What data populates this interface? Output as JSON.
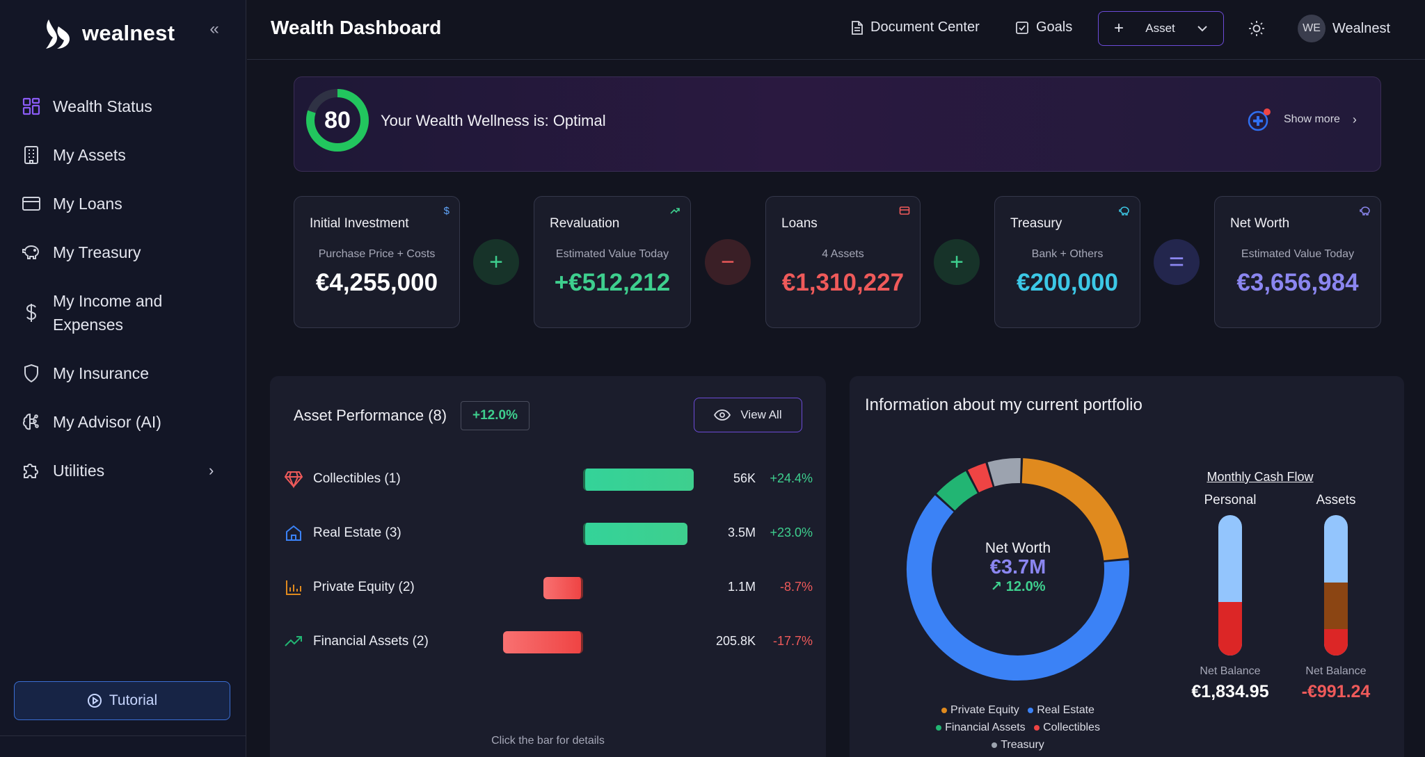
{
  "app": {
    "logo_text": "wealnest",
    "colors": {
      "accent": "#6c4bd8",
      "positive": "#3ecf8e",
      "negative": "#ef5a5a",
      "cyan": "#3cc8e6",
      "violet": "#8b86f0"
    }
  },
  "sidebar": {
    "items": [
      {
        "label": "Wealth Status",
        "icon": "grid-icon"
      },
      {
        "label": "My Assets",
        "icon": "building-icon"
      },
      {
        "label": "My Loans",
        "icon": "credit-card-icon"
      },
      {
        "label": "My Treasury",
        "icon": "piggy-bank-icon"
      },
      {
        "label": "My Income and Expenses",
        "icon": "dollar-icon"
      },
      {
        "label": "My Insurance",
        "icon": "shield-icon"
      },
      {
        "label": "My Advisor (AI)",
        "icon": "brain-icon"
      },
      {
        "label": "Utilities",
        "icon": "puzzle-icon"
      }
    ],
    "tutorial_label": "Tutorial"
  },
  "header": {
    "title": "Wealth Dashboard",
    "document_center": "Document Center",
    "goals": "Goals",
    "asset_button": "Asset",
    "user_initials": "WE",
    "user_name": "Wealnest"
  },
  "wellness": {
    "score": "80",
    "score_value": 80,
    "text": "Your Wealth Wellness is: Optimal",
    "show_more": "Show more"
  },
  "summary": [
    {
      "title": "Initial Investment",
      "subtitle": "Purchase Price + Costs",
      "value": "€4,255,000",
      "color": "#ffffff"
    },
    {
      "title": "Revaluation",
      "subtitle": "Estimated Value Today",
      "value": "+€512,212",
      "color": "#3ecf8e"
    },
    {
      "title": "Loans",
      "subtitle": "4 Assets",
      "value": "€1,310,227",
      "color": "#ef5a5a"
    },
    {
      "title": "Treasury",
      "subtitle": "Bank + Others",
      "value": "€200,000",
      "color": "#3cc8e6"
    },
    {
      "title": "Net Worth",
      "subtitle": "Estimated Value Today",
      "value": "€3,656,984",
      "color": "#8b86f0"
    }
  ],
  "asset_performance": {
    "title": "Asset Performance (8)",
    "badge": "+12.0%",
    "view_all": "View All",
    "footer": "Click the bar for details",
    "rows": [
      {
        "label": "Collectibles (1)",
        "value": "56K",
        "pct": "+24.4%",
        "pct_num": 24.4,
        "icon": "diamond-icon"
      },
      {
        "label": "Real Estate (3)",
        "value": "3.5M",
        "pct": "+23.0%",
        "pct_num": 23.0,
        "icon": "home-icon"
      },
      {
        "label": "Private Equity (2)",
        "value": "1.1M",
        "pct": "-8.7%",
        "pct_num": -8.7,
        "icon": "bar-chart-icon"
      },
      {
        "label": "Financial Assets (2)",
        "value": "205.8K",
        "pct": "-17.7%",
        "pct_num": -17.7,
        "icon": "trend-up-icon"
      }
    ]
  },
  "portfolio": {
    "title": "Information about my current portfolio",
    "center_label": "Net Worth",
    "center_value": "€3.7M",
    "center_change": "↗ 12.0%",
    "legend": [
      {
        "name": "Private Equity",
        "color": "#e08a1e"
      },
      {
        "name": "Real Estate",
        "color": "#3b82f6"
      },
      {
        "name": "Financial Assets",
        "color": "#22b573"
      },
      {
        "name": "Collectibles",
        "color": "#ef4444"
      },
      {
        "name": "Treasury",
        "color": "#9ca3af"
      }
    ]
  },
  "chart_data": {
    "type": "pie",
    "title": "",
    "categories": [
      "Private Equity",
      "Real Estate",
      "Financial Assets",
      "Collectibles",
      "Treasury"
    ],
    "values": [
      22.5,
      62,
      5.5,
      3,
      5
    ],
    "units": "percent of ring"
  },
  "cash_flow": {
    "title": "Monthly Cash Flow",
    "columns": [
      {
        "heading": "Personal",
        "net_label": "Net Balance",
        "net_value": "€1,834.95",
        "net_color": "#ffffff",
        "top_fraction": 0.62,
        "mid_fraction": 0.0,
        "bottom_fraction": 0.38,
        "mid_color": "#8b4513"
      },
      {
        "heading": "Assets",
        "net_label": "Net Balance",
        "net_value": "-€991.24",
        "net_color": "#ef5a5a",
        "top_fraction": 0.48,
        "mid_fraction": 0.33,
        "bottom_fraction": 0.19,
        "mid_color": "#8b4513"
      }
    ]
  }
}
